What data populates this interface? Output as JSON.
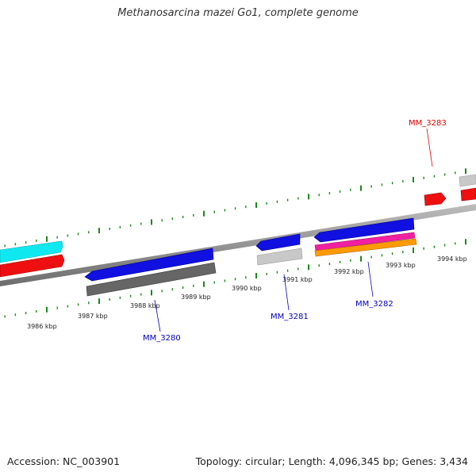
{
  "title": "Methanosarcina mazei Go1, complete genome",
  "footer": {
    "accession": "Accession: NC_003901",
    "summary": "Topology: circular; Length: 4,096,345 bp; Genes: 3,434"
  },
  "ticks": [
    "3986 kbp",
    "3987 kbp",
    "3988 kbp",
    "3989 kbp",
    "3990 kbp",
    "3991 kbp",
    "3992 kbp",
    "3993 kbp",
    "3994 kbp"
  ],
  "gene_labels": [
    {
      "id": "mm3283",
      "text": "MM_3283",
      "color": "#dd0000"
    },
    {
      "id": "mm3280",
      "text": "MM_3280",
      "color": "#0000cc"
    },
    {
      "id": "mm3281",
      "text": "MM_3281",
      "color": "#0000cc"
    },
    {
      "id": "mm3282",
      "text": "MM_3282",
      "color": "#0000cc"
    }
  ],
  "colors": {
    "backbone": "#888888",
    "tick": "#1a8a1a",
    "cds_blue": "#1010e0",
    "cds_red": "#ee1010",
    "cyan": "#10e8f0",
    "dark_gray": "#666666",
    "light_gray": "#c8c8c8",
    "magenta": "#f020a0",
    "orange": "#ff9a00"
  }
}
